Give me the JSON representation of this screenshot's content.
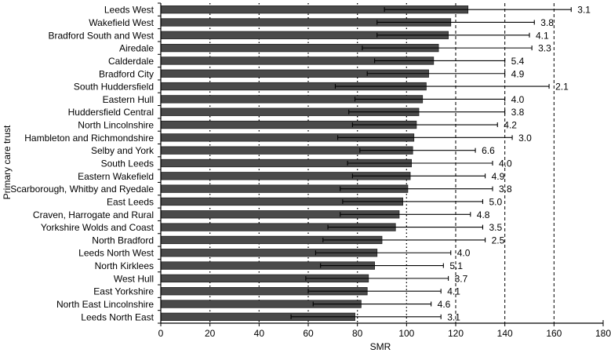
{
  "chart_data": {
    "type": "bar",
    "orientation": "horizontal",
    "xlabel": "SMR",
    "ylabel": "Primary care trust",
    "xlim": [
      0,
      180
    ],
    "xticks": [
      0,
      20,
      40,
      60,
      80,
      100,
      120,
      140,
      160,
      180
    ],
    "grid": "vertical dotted lines at 20, 40, 60, 80, 100; dashed lines at 120, 140, 160",
    "colors": {
      "bar": "#4a4a4a",
      "bar_border": "#222222",
      "axis": "#000000"
    },
    "categories": [
      "Leeds West",
      "Wakefield West",
      "Bradford South and West",
      "Airedale",
      "Calderdale",
      "Bradford City",
      "South Huddersfield",
      "Eastern Hull",
      "Huddersfield Central",
      "North Lincolnshire",
      "Hambleton and Richmondshire",
      "Selby and York",
      "South Leeds",
      "Eastern Wakefield",
      "Scarborough, Whitby and Ryedale",
      "East Leeds",
      "Craven, Harrogate and Rural",
      "Yorkshire Wolds and Coast",
      "North Bradford",
      "Leeds North West",
      "North Kirklees",
      "West Hull",
      "East Yorkshire",
      "North East Lincolnshire",
      "Leeds North East"
    ],
    "values": [
      125,
      118,
      117,
      113,
      111,
      109,
      108,
      106.5,
      105,
      104,
      103,
      102.5,
      102,
      101.5,
      100.5,
      98.5,
      97,
      95.5,
      90,
      88,
      87,
      84.5,
      84,
      81.5,
      79
    ],
    "ci_lower": [
      91,
      88,
      88,
      82,
      87,
      84,
      71,
      79,
      76.5,
      78,
      72,
      81,
      76,
      78,
      73,
      74,
      73,
      68,
      66,
      63,
      65,
      59,
      60,
      62,
      53
    ],
    "ci_upper": [
      167,
      152,
      150,
      151,
      140,
      140,
      158,
      140,
      140,
      137,
      143,
      128,
      135,
      132,
      135,
      131,
      126,
      131,
      132,
      118,
      115,
      117,
      114,
      110,
      114
    ],
    "data_labels": [
      "3.1",
      "3.8",
      "4.1",
      "3.3",
      "5.4",
      "4.9",
      "2.1",
      "4.0",
      "3.8",
      "4.2",
      "3.0",
      "6.6",
      "4.0",
      "4.9",
      "3.8",
      "5.0",
      "4.8",
      "3.5",
      "2.5",
      "4.0",
      "5.1",
      "3.7",
      "4.1",
      "4.6",
      "3.1"
    ]
  }
}
